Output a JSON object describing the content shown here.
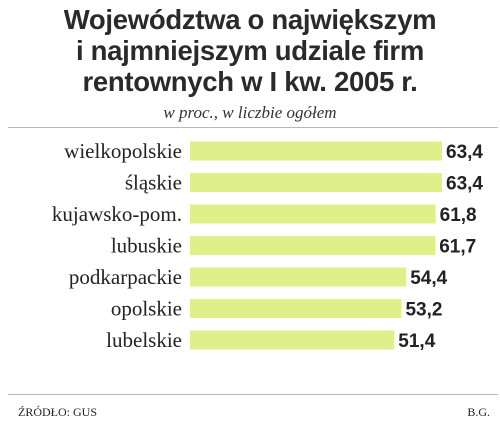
{
  "chart_data": {
    "type": "bar",
    "orientation": "horizontal",
    "title_lines": [
      "Województwa o największym",
      "i najmniejszym udziale firm",
      "rentownych w I kw. 2005 r."
    ],
    "subtitle": "w proc., w liczbie ogółem",
    "categories": [
      "wielkopolskie",
      "śląskie",
      "kujawsko-pom.",
      "lubuskie",
      "podkarpackie",
      "opolskie",
      "lubelskie"
    ],
    "values": [
      63.4,
      63.4,
      61.8,
      61.7,
      54.4,
      53.2,
      51.4
    ],
    "value_labels": [
      "63,4",
      "63,4",
      "61,8",
      "61,7",
      "54,4",
      "53,2",
      "51,4"
    ],
    "bar_color": "#dfef8a",
    "grid": false,
    "legend": "none"
  },
  "source": "ŹRÓDŁO: GUS",
  "author": "B.G."
}
